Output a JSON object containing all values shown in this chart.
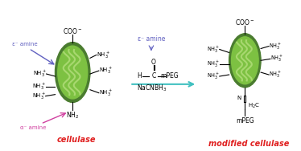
{
  "bg_color": "#ffffff",
  "enzyme_color_outer": "#4a7c2f",
  "enzyme_color_inner": "#7dc142",
  "enzyme_color_light": "#a8d870",
  "title_left": "cellulase",
  "title_right": "modified cellulase",
  "title_color": "#e02020",
  "arrow_color": "#40c0c0",
  "epsilon_amine_color": "#6060c0",
  "alpha_amine_color": "#d040a0",
  "label_color": "#000000",
  "reagent_text": "NaCNBH₃",
  "aldehyde_label": "H—C—mPEG",
  "coo_label": "COO⁻",
  "nh3_label": "NH₃⁺",
  "nh2_label": "NH₂",
  "mpeg_label": "mPEG",
  "epsilon_label": "ε⁻ amine",
  "alpha_label": "α⁻ amine",
  "fig_width": 3.74,
  "fig_height": 1.88
}
